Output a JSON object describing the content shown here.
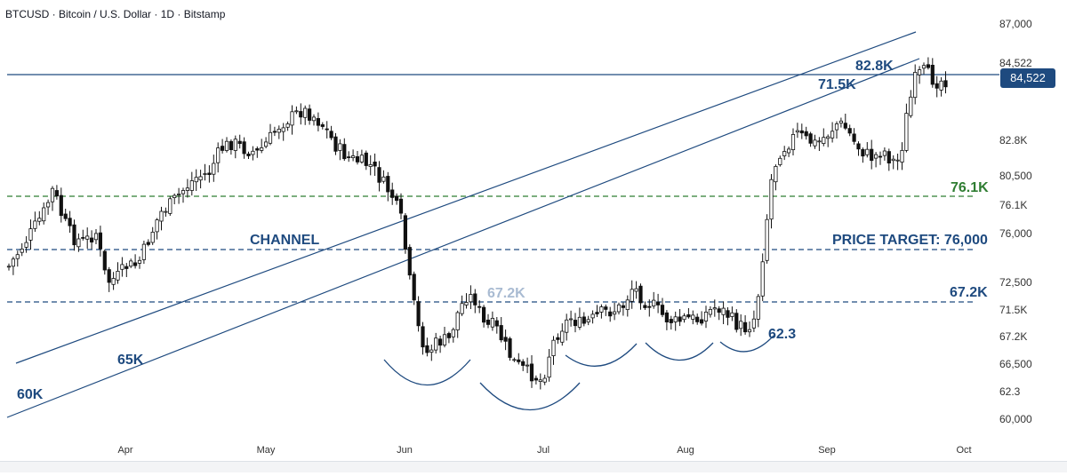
{
  "chart_data": {
    "type": "candlestick",
    "title": "BTCUSD · Bitcoin / U.S. Dollar · 1D · Bitstamp",
    "x_tick_labels": [
      "Apr",
      "May",
      "Jun",
      "Jul",
      "Aug",
      "Sep",
      "Oct"
    ],
    "y_tick_labels": [
      "87,000",
      "84,522",
      "82.8K",
      "80,500",
      "76.1K",
      "76,000",
      "72,500",
      "71.5K",
      "67.2K",
      "66,500",
      "62.3",
      "60,000"
    ],
    "current_price": "84,522",
    "annotations": [
      "CHANNEL",
      "PRICE TARGET: 76,000",
      "82.8K",
      "71.5K",
      "76.1K",
      "67.2K",
      "67.2K",
      "62.3",
      "65K",
      "60K"
    ],
    "colors": {
      "line": "#1e4a7f",
      "label": "#1e4a7f",
      "green_level": "#2f7d32",
      "faded_label": "#a9bbd2",
      "candle": "#111111",
      "up_fill": "#ffffff",
      "badge": "#1e4a7f",
      "axis_text": "#333333"
    }
  }
}
